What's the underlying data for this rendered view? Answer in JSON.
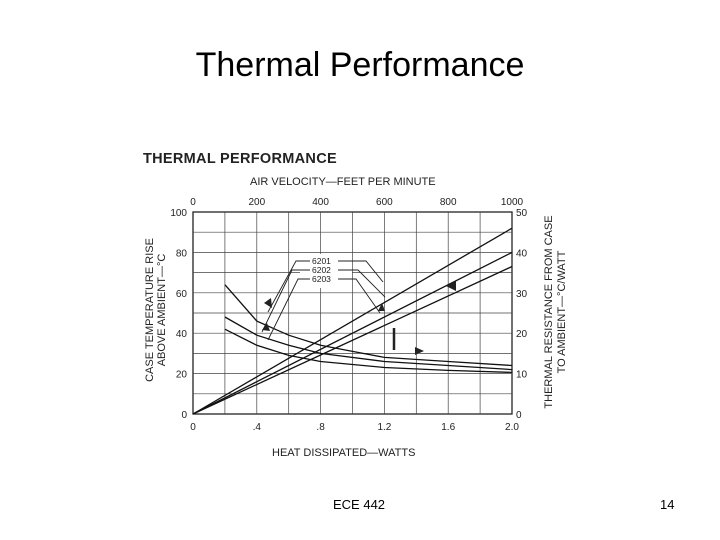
{
  "slide": {
    "title": "Thermal Performance",
    "footer_course": "ECE 442",
    "page_number": "14"
  },
  "chart_data": {
    "type": "line",
    "title": "THERMAL PERFORMANCE",
    "top_axis": {
      "label": "AIR VELOCITY—FEET PER MINUTE",
      "range": [
        0,
        1000
      ],
      "ticks": [
        "0",
        "200",
        "400",
        "600",
        "800",
        "1000"
      ]
    },
    "bottom_axis": {
      "label": "HEAT DISSIPATED—WATTS",
      "range": [
        0,
        2.0
      ],
      "ticks": [
        "0",
        ".4",
        ".8",
        "1.2",
        "1.6",
        "2.0"
      ]
    },
    "left_axis": {
      "label_line1": "CASE TEMPERATURE RISE",
      "label_line2": "ABOVE AMBIENT—°C",
      "range": [
        0,
        100
      ],
      "ticks": [
        "0",
        "20",
        "40",
        "60",
        "80",
        "100"
      ]
    },
    "right_axis": {
      "label_line1": "THERMAL RESISTANCE FROM CASE",
      "label_line2": "TO AMBIENT—°C/WATT",
      "range": [
        0,
        50
      ],
      "ticks": [
        "0",
        "10",
        "20",
        "30",
        "40",
        "50"
      ]
    },
    "legend": [
      "6201",
      "6202",
      "6203"
    ],
    "series": [
      {
        "name": "6201",
        "kind": "temperature_rise_vs_heat",
        "x": [
          0,
          2.0
        ],
        "y": [
          0,
          92
        ]
      },
      {
        "name": "6202",
        "kind": "temperature_rise_vs_heat",
        "x": [
          0,
          2.0
        ],
        "y": [
          0,
          80
        ]
      },
      {
        "name": "6203",
        "kind": "temperature_rise_vs_heat",
        "x": [
          0,
          2.0
        ],
        "y": [
          0,
          73
        ]
      },
      {
        "name": "6201",
        "kind": "thermal_resistance_vs_air_velocity",
        "x": [
          100,
          200,
          300,
          400,
          500,
          600,
          800,
          1000
        ],
        "y": [
          32,
          23,
          19.5,
          17,
          15.5,
          14,
          13,
          12
        ]
      },
      {
        "name": "6202",
        "kind": "thermal_resistance_vs_air_velocity",
        "x": [
          100,
          200,
          300,
          400,
          600,
          800,
          1000
        ],
        "y": [
          24,
          19.5,
          17,
          15,
          13,
          12,
          11
        ]
      },
      {
        "name": "6203",
        "kind": "thermal_resistance_vs_air_velocity",
        "x": [
          100,
          200,
          300,
          400,
          600,
          800,
          1000
        ],
        "y": [
          21,
          17,
          14.5,
          13,
          11.5,
          10.8,
          10.3
        ]
      }
    ]
  }
}
